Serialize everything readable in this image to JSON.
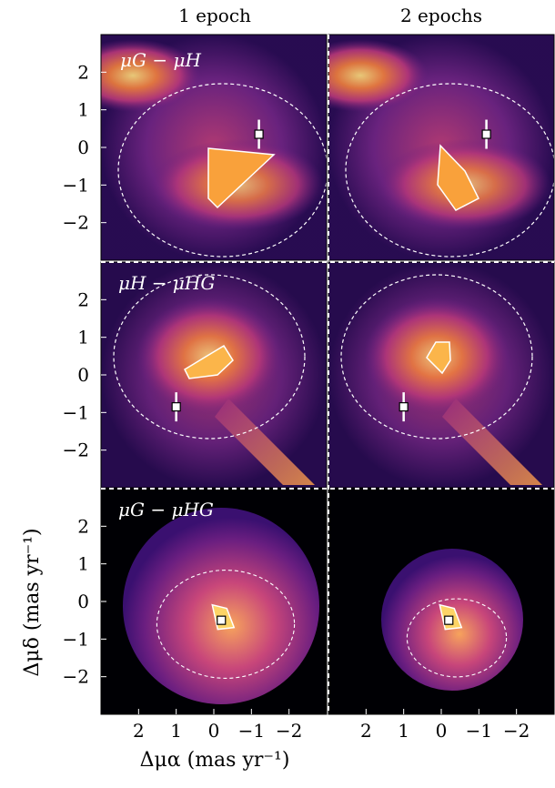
{
  "columns": [
    "1 epoch",
    "2 epochs"
  ],
  "rows": [
    "μG − μH",
    "μH − μHG",
    "μG − μHG"
  ],
  "xlabel": "Δμα (mas yr⁻¹)",
  "ylabel": "Δμδ (mas yr⁻¹)",
  "colors": {
    "background": "#000004",
    "low": "#3b0f70",
    "mid": "#b73779",
    "high": "#fcfdbf",
    "contour": "#ffffff"
  },
  "chart_data": {
    "type": "heatmap",
    "xlim": [
      3,
      -3
    ],
    "ylim": [
      -3,
      3
    ],
    "x_ticks": [
      2,
      1,
      0,
      -1,
      -2
    ],
    "x_tick_labels": [
      "2",
      "1",
      "0",
      "−1",
      "−2"
    ],
    "y_ticks": [
      2,
      1,
      0,
      -1,
      -2
    ],
    "y_tick_labels": [
      "2",
      "1",
      "0",
      "−1",
      "−2"
    ],
    "panels": [
      {
        "row": 0,
        "col": 0,
        "label": "μG − μH",
        "marker": {
          "x": -1.2,
          "y": 0.35
        },
        "has_errorbar": true
      },
      {
        "row": 0,
        "col": 1,
        "label": "",
        "marker": {
          "x": -1.2,
          "y": 0.35
        },
        "has_errorbar": true
      },
      {
        "row": 1,
        "col": 0,
        "label": "μH − μHG",
        "marker": {
          "x": 1.0,
          "y": -0.85
        },
        "has_errorbar": true
      },
      {
        "row": 1,
        "col": 1,
        "label": "",
        "marker": {
          "x": 1.0,
          "y": -0.85
        },
        "has_errorbar": true
      },
      {
        "row": 2,
        "col": 0,
        "label": "μG − μHG",
        "marker": {
          "x": -0.2,
          "y": -0.5
        },
        "has_errorbar": false
      },
      {
        "row": 2,
        "col": 1,
        "label": "",
        "marker": {
          "x": -0.2,
          "y": -0.5
        },
        "has_errorbar": false
      }
    ]
  }
}
